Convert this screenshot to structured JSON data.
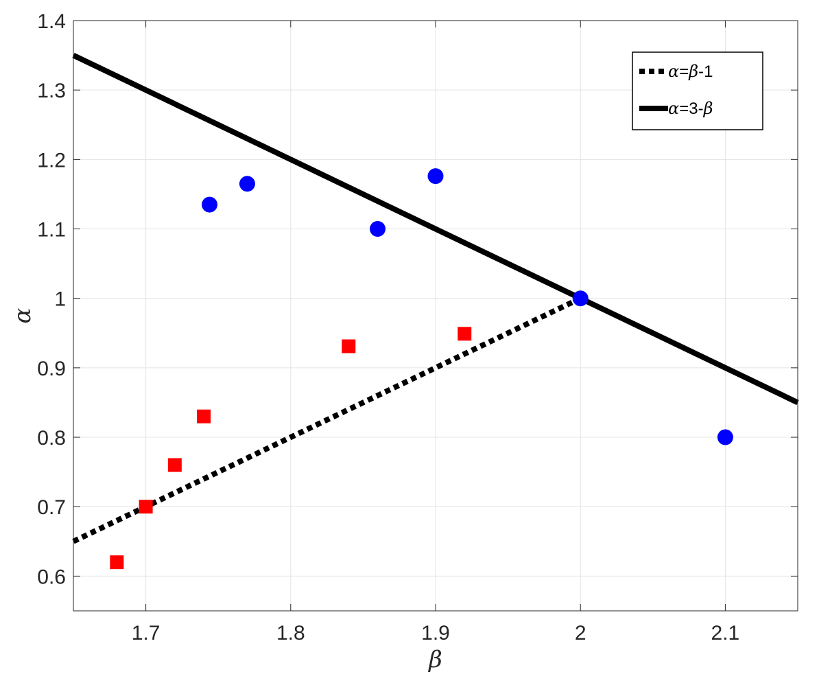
{
  "chart_data": {
    "type": "scatter",
    "xlabel": "β",
    "ylabel": "α",
    "xlim": [
      1.65,
      2.15
    ],
    "ylim": [
      0.55,
      1.4
    ],
    "x_ticks": [
      "1.7",
      "1.8",
      "1.9",
      "2",
      "2.1"
    ],
    "y_ticks": [
      "0.6",
      "0.7",
      "0.8",
      "0.9",
      "1",
      "1.1",
      "1.2",
      "1.3",
      "1.4"
    ],
    "x_tick_values": [
      1.7,
      1.8,
      1.9,
      2.0,
      2.1
    ],
    "y_tick_values": [
      0.6,
      0.7,
      0.8,
      0.9,
      1.0,
      1.1,
      1.2,
      1.3,
      1.4
    ],
    "grid": true,
    "legend_position": "top-right",
    "lines": [
      {
        "legend_greek_a": "α",
        "legend_mid": "=",
        "legend_greek_b": "β",
        "legend_tail": "-1",
        "style": "dotted",
        "color": "#000000",
        "x": [
          1.65,
          2.0
        ],
        "y": [
          0.65,
          1.0
        ]
      },
      {
        "legend_greek_a": "α",
        "legend_mid": "=3-",
        "legend_greek_b": "β",
        "legend_tail": "",
        "style": "solid",
        "color": "#000000",
        "x": [
          1.65,
          2.15
        ],
        "y": [
          1.35,
          0.85
        ]
      }
    ],
    "series": [
      {
        "marker": "circle",
        "color": "#0000ff",
        "points": [
          {
            "x": 1.744,
            "y": 1.135
          },
          {
            "x": 1.77,
            "y": 1.165
          },
          {
            "x": 1.86,
            "y": 1.1
          },
          {
            "x": 1.9,
            "y": 1.176
          },
          {
            "x": 2.0,
            "y": 1.0
          },
          {
            "x": 2.1,
            "y": 0.8
          }
        ]
      },
      {
        "marker": "square",
        "color": "#ff0000",
        "points": [
          {
            "x": 1.68,
            "y": 0.62
          },
          {
            "x": 1.7,
            "y": 0.7
          },
          {
            "x": 1.72,
            "y": 0.76
          },
          {
            "x": 1.74,
            "y": 0.83
          },
          {
            "x": 1.84,
            "y": 0.931
          },
          {
            "x": 1.92,
            "y": 0.949
          }
        ]
      }
    ]
  }
}
